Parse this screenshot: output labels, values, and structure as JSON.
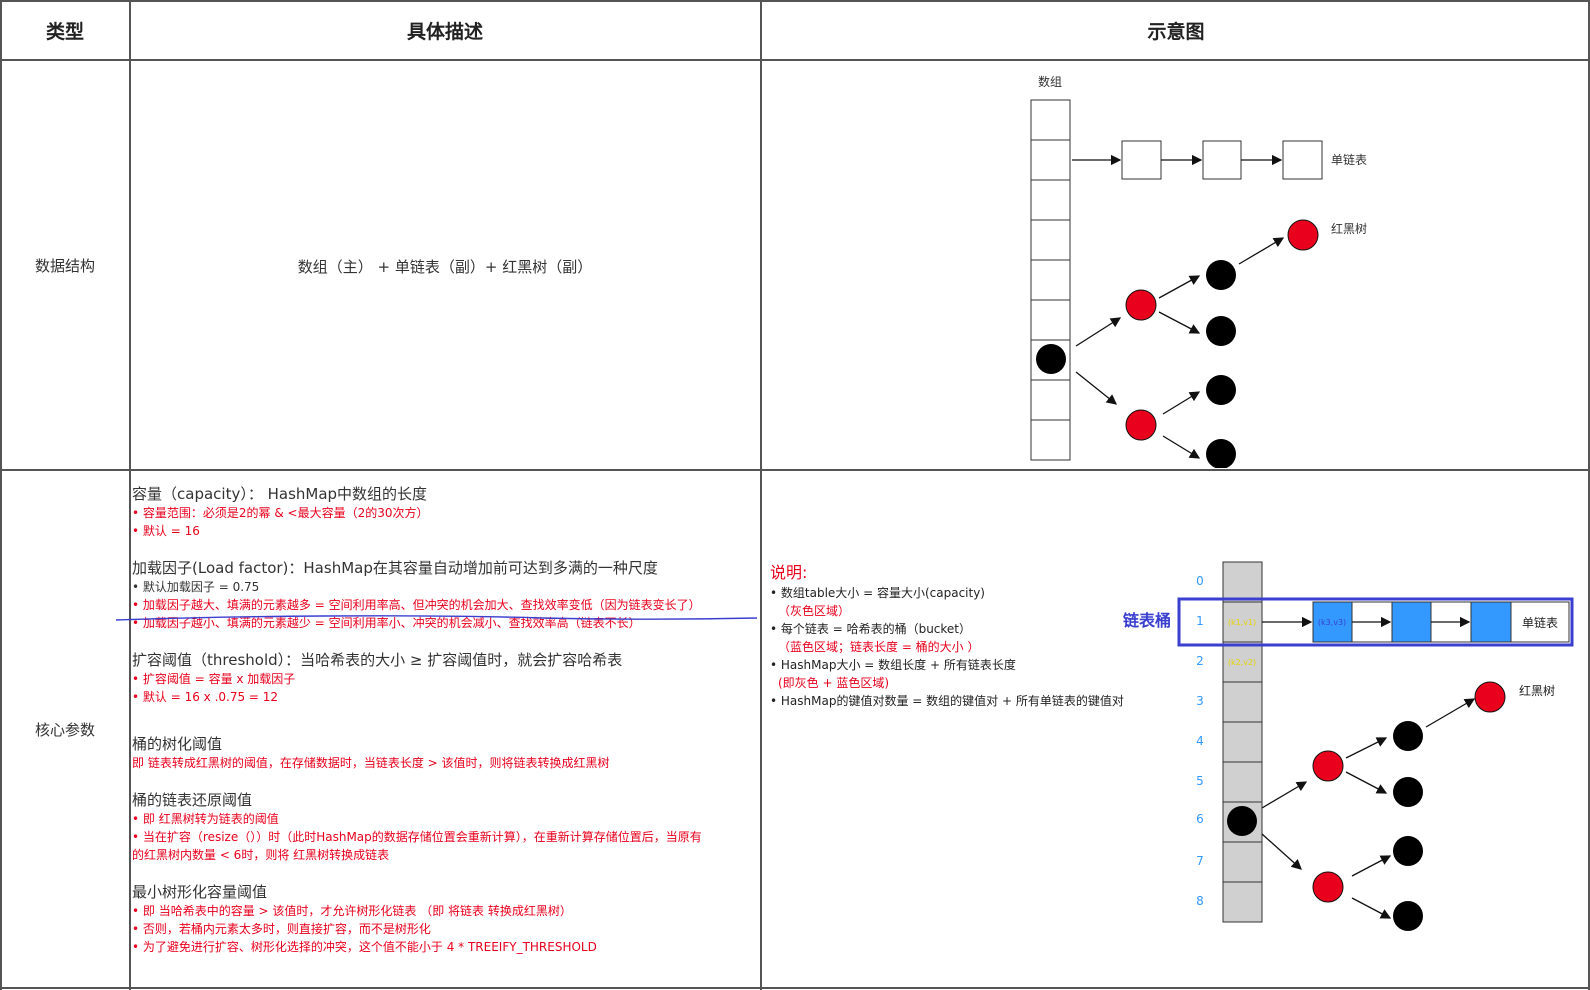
{
  "headers": {
    "type": "类型",
    "desc": "具体描述",
    "diagram": "示意图"
  },
  "rows": [
    {
      "label": "数据结构",
      "description": "数组（主） + 单链表（副）+ 红黑树（副）"
    },
    {
      "label": "核心参数"
    }
  ],
  "diagram1": {
    "array_label": "数组",
    "list_label": "单链表",
    "tree_label": "红黑树"
  },
  "params": {
    "capacity_title": "容量（capacity）： HashMap中数组的长度",
    "capacity_items": [
      "• 容量范围：必须是2的幂 & <最大容量（2的30次方）",
      "• 默认 = 16"
    ],
    "load_title": "加载因子(Load factor)：HashMap在其容量自动增加前可达到多满的一种尺度",
    "load_default": "• 默认加载因子 = 0.75",
    "load_items": [
      "• 加载因子越大、填满的元素越多 = 空间利用率高、但冲突的机会加大、查找效率变低（因为链表变长了）",
      "• 加载因子越小、填满的元素越少 = 空间利用率小、冲突的机会减小、查找效率高（链表不长）"
    ],
    "threshold_title": "扩容阈值（threshold）：当哈希表的大小 ≥ 扩容阈值时，就会扩容哈希表",
    "threshold_items": [
      "• 扩容阈值 = 容量 x 加载因子",
      "• 默认 = 16 x .0.75 = 12"
    ],
    "treeify_title": "桶的树化阈值",
    "treeify_desc": "即 链表转成红黑树的阈值，在存储数据时，当链表长度 > 该值时，则将链表转换成红黑树",
    "untreeify_title": "桶的链表还原阈值",
    "untreeify_items": [
      "• 即 红黑树转为链表的阈值",
      "• 当在扩容（resize（））时（此时HashMap的数据存储位置会重新计算），在重新计算存储位置后，当原有",
      "的红黑树内数量 < 6时，则将 红黑树转换成链表"
    ],
    "min_title": "最小树形化容量阈值",
    "min_items": [
      "• 即 当哈希表中的容量 > 该值时，才允许树形化链表 （即 将链表 转换成红黑树）",
      "• 否则，若桶内元素太多时，则直接扩容，而不是树形化",
      "• 为了避免进行扩容、树形化选择的冲突，这个值不能小于 4 * TREEIFY_THRESHOLD"
    ]
  },
  "note": {
    "title": "说明:",
    "lines": [
      "• 数组table大小 = 容量大小(capacity)",
      "（灰色区域）",
      "• 每个链表 = 哈希表的桶（bucket）",
      "（蓝色区域；链表长度 = 桶的大小 ）",
      "• HashMap大小 = 数组长度 + 所有链表长度",
      "(即灰色 + 蓝色区域)",
      "• HashMap的键值对数量 = 数组的键值对 + 所有单链表的键值对"
    ]
  },
  "diagram2": {
    "bucket_label": "链表桶",
    "indices": [
      "0",
      "1",
      "2",
      "3",
      "4",
      "5",
      "6",
      "7",
      "8"
    ],
    "list_label": "单链表",
    "tree_label": "红黑树",
    "kv1": "(k1,v1)",
    "kv2": "(k2,v2)",
    "kv3": "(k3,v3)"
  },
  "colors": {
    "red": "#e8001c",
    "blue_box": "#3a3fd0",
    "blue_cell": "#3399ff",
    "gray_cell": "#d0d0d0",
    "index_blue": "#3399ff",
    "kv_yellow": "#e6d200"
  }
}
